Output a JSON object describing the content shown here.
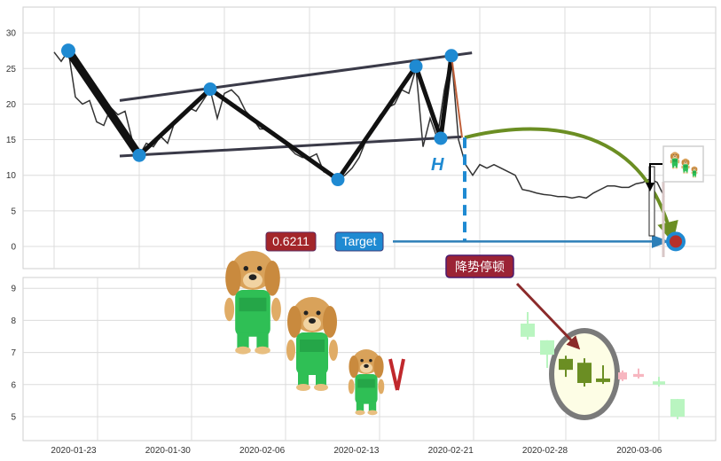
{
  "chart_data": [
    {
      "type": "line",
      "panel": "top",
      "ylim": [
        -3.2,
        33.5
      ],
      "yticks": [
        0,
        5,
        10,
        15,
        20,
        25,
        30
      ],
      "grid": true,
      "price_series": [
        27.3,
        26,
        27.5,
        21,
        20,
        20.5,
        17.5,
        17,
        19.5,
        18.5,
        19,
        15,
        12.8,
        14.5,
        14,
        15.5,
        14.5,
        17.5,
        18.5,
        19.5,
        19,
        20.5,
        22,
        18,
        21.5,
        22,
        21,
        19,
        18,
        16.5,
        16.5,
        16,
        15,
        14,
        13,
        12.5,
        12.5,
        13,
        10.5,
        10,
        9.4,
        10,
        11,
        12.5,
        15,
        17,
        18.5,
        19.5,
        20,
        22,
        21.5,
        25,
        14,
        18,
        15.2,
        22,
        26.8,
        15,
        11.5,
        10,
        11.5,
        11,
        11.5,
        11,
        10.5,
        10,
        8,
        7.8,
        7.5,
        7.3,
        7.2,
        7,
        7,
        6.8,
        7,
        6.8,
        7.5,
        8,
        8.5,
        8.5,
        8.3,
        8.3,
        8.8,
        9,
        9.5,
        9,
        7
      ],
      "pivots": [
        {
          "index": 2,
          "value": 27.5
        },
        {
          "index": 12,
          "value": 12.8
        },
        {
          "index": 22,
          "value": 22.1
        },
        {
          "index": 40,
          "value": 9.4
        },
        {
          "index": 51,
          "value": 25.3
        },
        {
          "index": 54.5,
          "value": 15.2
        },
        {
          "index": 56,
          "value": 26.8
        }
      ],
      "trend_lines": [
        {
          "name": "upper",
          "from": [
            9.25,
            20.5
          ],
          "to": [
            58.9,
            27.2
          ]
        },
        {
          "name": "lower",
          "from": [
            9.25,
            12.7
          ],
          "to": [
            57.4,
            15.4
          ]
        }
      ],
      "breakout": {
        "index": 57.5,
        "value": 15.3
      },
      "target_value": 0.7,
      "annotations": {
        "height_label": "H",
        "ratio_badge": "0.6211",
        "target_badge": "Target"
      }
    },
    {
      "type": "candlestick",
      "panel": "bottom",
      "ylim": [
        4.3,
        9.4
      ],
      "yticks": [
        5,
        6,
        7,
        8,
        9
      ],
      "grid": true,
      "xtick_labels": [
        "2020-01-23",
        "2020-01-30",
        "2020-02-06",
        "2020-02-13",
        "2020-02-21",
        "2020-02-28",
        "2020-03-06"
      ],
      "candles": [
        {
          "open": 7.9,
          "close": 7.49,
          "high": 8.26,
          "low": 7.4,
          "style": "faded-green"
        },
        {
          "open": 7.38,
          "close": 6.93,
          "high": 7.38,
          "low": 6.52,
          "style": "faded-green"
        },
        {
          "open": 6.8,
          "close": 6.46,
          "high": 6.9,
          "low": 6.24,
          "style": "highlight"
        },
        {
          "open": 6.68,
          "close": 6.05,
          "high": 6.82,
          "low": 5.94,
          "style": "highlight"
        },
        {
          "open": 6.19,
          "close": 6.08,
          "high": 6.6,
          "low": 6.02,
          "style": "highlight"
        },
        {
          "open": 6.16,
          "close": 6.38,
          "high": 6.44,
          "low": 6.11,
          "style": "faded-red"
        },
        {
          "open": 6.24,
          "close": 6.33,
          "high": 6.5,
          "low": 6.19,
          "style": "faded-red"
        },
        {
          "open": 6.1,
          "close": 6.0,
          "high": 6.24,
          "low": 5.94,
          "style": "faded-green"
        },
        {
          "open": 5.55,
          "close": 5.0,
          "high": 5.55,
          "low": 4.92,
          "style": "faded-green"
        }
      ],
      "annotations": {
        "pause_badge": "降势停顿"
      }
    }
  ],
  "colors": {
    "pivot": "#1f8ad2",
    "price": "#333333",
    "zigzag": "#111111",
    "trend": "#3a3a48",
    "arc": "#6b8e23",
    "ratio_badge": "#a3262a",
    "target_badge": "#1f8ad2",
    "pause_badge": "#9b2335",
    "faded_green": "#b9f5c0",
    "faded_red": "#f7b6c0",
    "highlight": "#6b8e23",
    "ellipse_fill": "#fdfde5",
    "ellipse_stroke": "#7a7a7a"
  },
  "icons": [
    "dog-mascot-icon",
    "dog-mascot-icon",
    "dog-with-pliers-icon",
    "mini-dogs-thumbnail-icon",
    "target-icon"
  ]
}
